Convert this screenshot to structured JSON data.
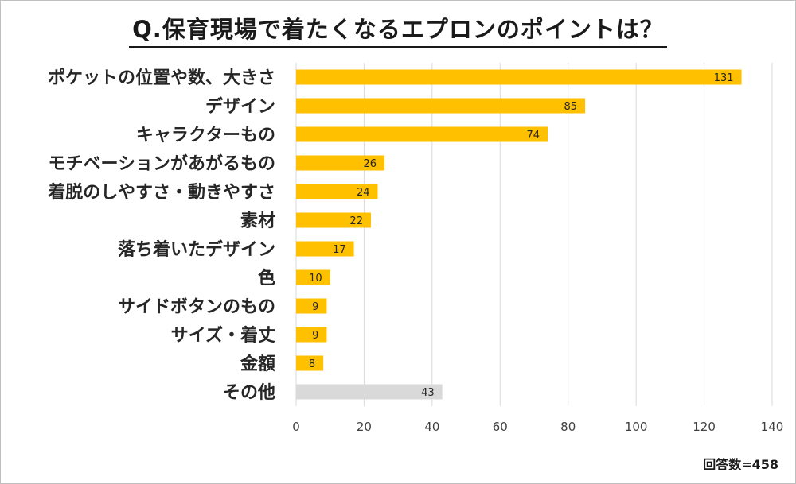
{
  "chart_data": {
    "type": "bar",
    "orientation": "horizontal",
    "title": "Q.保育現場で着たくなるエプロンのポイントは？",
    "categories": [
      "ポケットの位置や数、大きさ",
      "デザイン",
      "キャラクターもの",
      "モチベーションがあがるもの",
      "着脱のしやすさ・動きやすさ",
      "素材",
      "落ち着いたデザイン",
      "色",
      "サイドボタンのもの",
      "サイズ・着丈",
      "金額",
      "その他"
    ],
    "values": [
      131,
      85,
      74,
      26,
      24,
      22,
      17,
      10,
      9,
      9,
      8,
      43
    ],
    "colors": [
      "#FFC000",
      "#FFC000",
      "#FFC000",
      "#FFC000",
      "#FFC000",
      "#FFC000",
      "#FFC000",
      "#FFC000",
      "#FFC000",
      "#FFC000",
      "#FFC000",
      "#D9D9D9"
    ],
    "xlim": [
      0,
      140
    ],
    "xticks": [
      0,
      20,
      40,
      60,
      80,
      100,
      120,
      140
    ],
    "grid": true,
    "legend": "none",
    "note": "回答数=458"
  }
}
